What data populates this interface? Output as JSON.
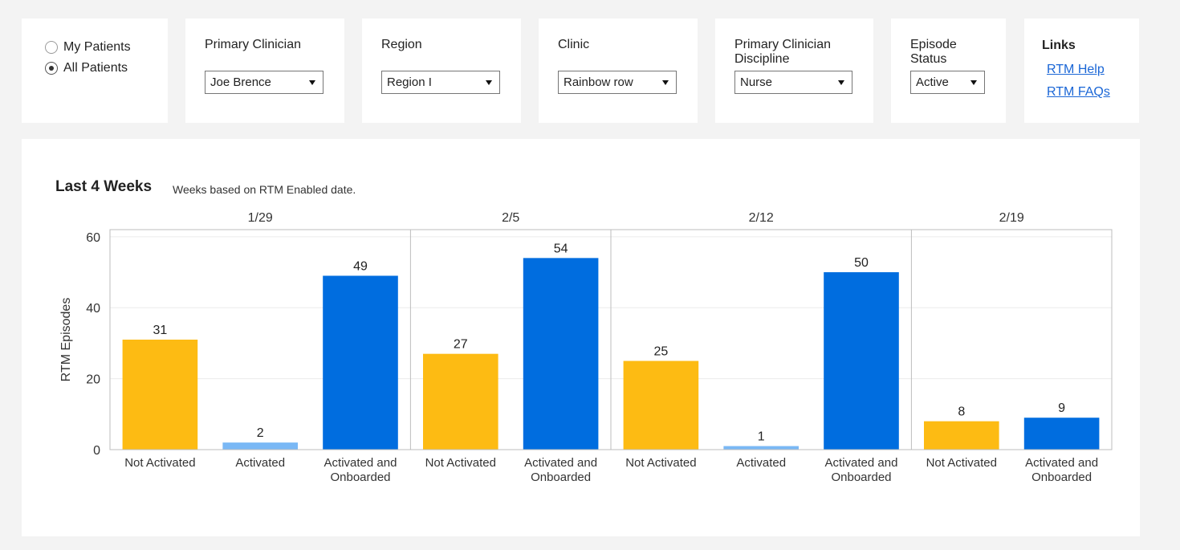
{
  "patient_filter": {
    "options": [
      {
        "label": "My Patients",
        "checked": false
      },
      {
        "label": "All Patients",
        "checked": true
      }
    ]
  },
  "filters": {
    "primary_clinician": {
      "label": "Primary Clinician",
      "value": "Joe Brence"
    },
    "region": {
      "label": "Region",
      "value": "Region I"
    },
    "clinic": {
      "label": "Clinic",
      "value": "Rainbow row"
    },
    "discipline": {
      "label_line1": "Primary Clinician",
      "label_line2": "Discipline",
      "value": "Nurse"
    },
    "episode_status": {
      "label_line1": "Episode",
      "label_line2": "Status",
      "value": "Active"
    }
  },
  "links": {
    "title": "Links",
    "items": [
      "RTM Help",
      "RTM FAQs"
    ]
  },
  "colors": {
    "not_activated": "#fdbb13",
    "activated": "#7ab8f5",
    "activated_onboarded": "#006ddf",
    "link": "#1a66d6"
  },
  "chart_data": {
    "type": "bar",
    "title": "Last 4 Weeks",
    "subtitle": "Weeks based on RTM Enabled date.",
    "ylabel": "RTM Episodes",
    "ylim": [
      0,
      62
    ],
    "yticks": [
      0,
      20,
      40,
      60
    ],
    "grid": true,
    "panels": [
      {
        "week": "1/29",
        "bars": [
          {
            "category": "Not Activated",
            "value": 31,
            "series": "not_activated"
          },
          {
            "category": "Activated",
            "value": 2,
            "series": "activated"
          },
          {
            "category": "Activated and Onboarded",
            "value": 49,
            "series": "activated_onboarded"
          }
        ]
      },
      {
        "week": "2/5",
        "bars": [
          {
            "category": "Not Activated",
            "value": 27,
            "series": "not_activated"
          },
          {
            "category": "Activated and Onboarded",
            "value": 54,
            "series": "activated_onboarded"
          }
        ]
      },
      {
        "week": "2/12",
        "bars": [
          {
            "category": "Not Activated",
            "value": 25,
            "series": "not_activated"
          },
          {
            "category": "Activated",
            "value": 1,
            "series": "activated"
          },
          {
            "category": "Activated and Onboarded",
            "value": 50,
            "series": "activated_onboarded"
          }
        ]
      },
      {
        "week": "2/19",
        "bars": [
          {
            "category": "Not Activated",
            "value": 8,
            "series": "not_activated"
          },
          {
            "category": "Activated and Onboarded",
            "value": 9,
            "series": "activated_onboarded"
          }
        ]
      }
    ]
  }
}
